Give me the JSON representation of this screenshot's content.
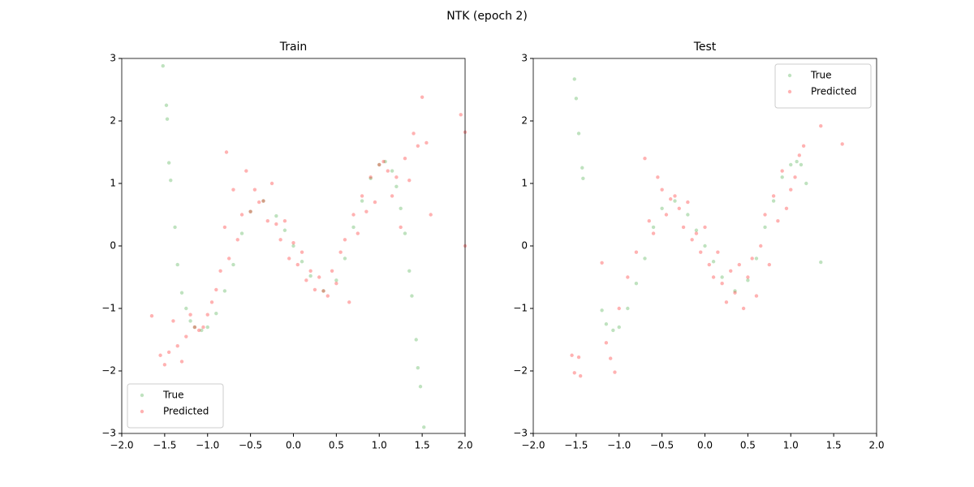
{
  "title": "NTK (epoch 2)",
  "chart_data": [
    {
      "type": "scatter",
      "title": "Train",
      "legend": "lower left",
      "xlim": [
        -2,
        2
      ],
      "ylim": [
        -3,
        3
      ],
      "xticks": [
        {
          "value": -2,
          "label": "−2.0"
        },
        {
          "value": -1.5,
          "label": "−1.5"
        },
        {
          "value": -1,
          "label": "−1.0"
        },
        {
          "value": -0.5,
          "label": "−0.5"
        },
        {
          "value": 0,
          "label": "0.0"
        },
        {
          "value": 0.5,
          "label": "0.5"
        },
        {
          "value": 1,
          "label": "1.0"
        },
        {
          "value": 1.5,
          "label": "1.5"
        },
        {
          "value": 2,
          "label": "2.0"
        }
      ],
      "yticks": [
        {
          "value": -3,
          "label": "−3"
        },
        {
          "value": -2,
          "label": "−2"
        },
        {
          "value": -1,
          "label": "−1"
        },
        0,
        1,
        2,
        3
      ],
      "series": [
        {
          "name": "True",
          "color": "#2ca02c",
          "x": [
            -1.52,
            -1.48,
            -1.47,
            -1.45,
            -1.43,
            -1.38,
            -1.35,
            -1.3,
            -1.25,
            -1.2,
            -1.15,
            -1.07,
            -1.0,
            -0.9,
            -0.8,
            -0.7,
            -0.6,
            -0.5,
            -0.35,
            -0.2,
            -0.1,
            0,
            0.1,
            0.2,
            0.35,
            0.5,
            0.6,
            0.7,
            0.8,
            0.9,
            1.0,
            1.07,
            1.15,
            1.2,
            1.25,
            1.3,
            1.35,
            1.38,
            1.43,
            1.45,
            1.48,
            1.52
          ],
          "values": [
            2.88,
            2.25,
            2.03,
            1.33,
            1.05,
            0.3,
            -0.3,
            -0.75,
            -1.0,
            -1.2,
            -1.3,
            -1.35,
            -1.3,
            -1.08,
            -0.72,
            -0.3,
            0.2,
            0.55,
            0.72,
            0.48,
            0.25,
            0,
            -0.25,
            -0.48,
            -0.72,
            -0.55,
            -0.2,
            0.3,
            0.72,
            1.08,
            1.3,
            1.35,
            1.2,
            0.95,
            0.6,
            0.2,
            -0.4,
            -0.8,
            -1.5,
            -1.95,
            -2.25,
            -2.9
          ]
        },
        {
          "name": "Predicted",
          "color": "#ff0000",
          "x": [
            -1.65,
            -1.55,
            -1.5,
            -1.45,
            -1.4,
            -1.35,
            -1.3,
            -1.25,
            -1.2,
            -1.15,
            -1.1,
            -1.05,
            -1.0,
            -0.95,
            -0.9,
            -0.85,
            -0.8,
            -0.78,
            -0.75,
            -0.7,
            -0.65,
            -0.6,
            -0.55,
            -0.5,
            -0.45,
            -0.4,
            -0.35,
            -0.3,
            -0.25,
            -0.2,
            -0.15,
            -0.1,
            -0.05,
            0,
            0.05,
            0.1,
            0.15,
            0.2,
            0.25,
            0.3,
            0.35,
            0.4,
            0.45,
            0.5,
            0.55,
            0.6,
            0.65,
            0.7,
            0.75,
            0.8,
            0.85,
            0.9,
            0.95,
            1.0,
            1.05,
            1.1,
            1.15,
            1.2,
            1.25,
            1.3,
            1.35,
            1.4,
            1.45,
            1.5,
            1.55,
            1.6,
            1.95,
            2.0,
            2.0
          ],
          "values": [
            -1.12,
            -1.75,
            -1.9,
            -1.7,
            -1.2,
            -1.6,
            -1.85,
            -1.45,
            -1.1,
            -1.3,
            -1.35,
            -1.3,
            -1.1,
            -0.9,
            -0.7,
            -0.4,
            0.3,
            1.5,
            -0.2,
            0.9,
            0.1,
            0.5,
            1.2,
            0.55,
            0.9,
            0.7,
            0.72,
            0.4,
            1.0,
            0.35,
            0.1,
            0.4,
            -0.2,
            0.05,
            -0.3,
            -0.1,
            -0.55,
            -0.4,
            -0.7,
            -0.5,
            -0.72,
            -0.8,
            -0.4,
            -0.6,
            -0.1,
            0.1,
            -0.9,
            0.5,
            0.2,
            0.8,
            0.55,
            1.1,
            0.7,
            1.3,
            1.35,
            1.2,
            0.8,
            1.1,
            0.3,
            1.4,
            1.05,
            1.8,
            1.6,
            2.38,
            1.65,
            0.5,
            2.1,
            1.82,
            0.0
          ]
        }
      ]
    },
    {
      "type": "scatter",
      "title": "Test",
      "legend": "upper right",
      "xlim": [
        -2,
        2
      ],
      "ylim": [
        -3,
        3
      ],
      "xticks": [
        {
          "value": -2,
          "label": "−2.0"
        },
        {
          "value": -1.5,
          "label": "−1.5"
        },
        {
          "value": -1,
          "label": "−1.0"
        },
        {
          "value": -0.5,
          "label": "−0.5"
        },
        {
          "value": 0,
          "label": "0.0"
        },
        {
          "value": 0.5,
          "label": "0.5"
        },
        {
          "value": 1,
          "label": "1.0"
        },
        {
          "value": 1.5,
          "label": "1.5"
        },
        {
          "value": 2,
          "label": "2.0"
        }
      ],
      "yticks": [
        {
          "value": -3,
          "label": "−3"
        },
        {
          "value": -2,
          "label": "−2"
        },
        {
          "value": -1,
          "label": "−1"
        },
        0,
        1,
        2,
        3
      ],
      "series": [
        {
          "name": "True",
          "color": "#2ca02c",
          "x": [
            -1.52,
            -1.5,
            -1.47,
            -1.43,
            -1.42,
            -1.2,
            -1.15,
            -1.07,
            -1.0,
            -0.9,
            -0.8,
            -0.7,
            -0.6,
            -0.5,
            -0.35,
            -0.2,
            -0.1,
            0,
            0.1,
            0.2,
            0.35,
            0.5,
            0.6,
            0.7,
            0.8,
            0.9,
            1.0,
            1.07,
            1.12,
            1.18,
            1.35
          ],
          "values": [
            2.67,
            2.36,
            1.8,
            1.25,
            1.08,
            -1.03,
            -1.25,
            -1.35,
            -1.3,
            -1.0,
            -0.6,
            -0.2,
            0.3,
            0.6,
            0.72,
            0.5,
            0.25,
            0,
            -0.25,
            -0.5,
            -0.72,
            -0.55,
            -0.2,
            0.3,
            0.72,
            1.1,
            1.3,
            1.35,
            1.3,
            1.0,
            -0.26
          ]
        },
        {
          "name": "Predicted",
          "color": "#ff0000",
          "x": [
            -1.55,
            -1.52,
            -1.47,
            -1.45,
            -1.2,
            -1.15,
            -1.1,
            -1.05,
            -1.0,
            -0.9,
            -0.8,
            -0.7,
            -0.65,
            -0.6,
            -0.55,
            -0.5,
            -0.45,
            -0.4,
            -0.35,
            -0.3,
            -0.25,
            -0.2,
            -0.15,
            -0.1,
            -0.05,
            0,
            0.05,
            0.1,
            0.15,
            0.2,
            0.25,
            0.3,
            0.35,
            0.4,
            0.45,
            0.5,
            0.55,
            0.6,
            0.65,
            0.7,
            0.75,
            0.8,
            0.85,
            0.9,
            0.95,
            1.0,
            1.05,
            1.1,
            1.15,
            1.35,
            1.6
          ],
          "values": [
            -1.75,
            -2.03,
            -1.78,
            -2.08,
            -0.27,
            -1.55,
            -1.8,
            -2.02,
            -1.0,
            -0.5,
            -0.1,
            1.4,
            0.4,
            0.2,
            1.1,
            0.9,
            0.5,
            0.75,
            0.8,
            0.6,
            0.3,
            0.7,
            0.1,
            0.2,
            -0.1,
            0.3,
            -0.3,
            -0.5,
            -0.1,
            -0.6,
            -0.9,
            -0.4,
            -0.75,
            -0.3,
            -1.0,
            -0.5,
            -0.2,
            -0.8,
            0.0,
            0.5,
            -0.3,
            0.8,
            0.4,
            1.2,
            0.6,
            0.9,
            1.1,
            1.45,
            1.6,
            1.92,
            1.63
          ]
        }
      ]
    }
  ]
}
